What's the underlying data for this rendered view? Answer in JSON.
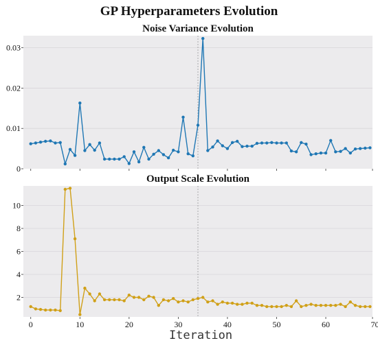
{
  "page_title": "GP Hyperparameters Evolution",
  "x_label": "Iteration",
  "colors": {
    "panel_bg": "#ecebed",
    "noise_line": "#1f77b4",
    "scale_line": "#d0a018",
    "vline": "#999999"
  },
  "vertical_marker_x": 34,
  "chart_data": [
    {
      "type": "line",
      "title": "Noise Variance Evolution",
      "xlabel": "",
      "ylabel": "",
      "ylim": [
        0,
        0.033
      ],
      "yticks": [
        0,
        0.01,
        0.02,
        0.03
      ],
      "ytick_labels": [
        "0",
        "0.01",
        "0.02",
        "0.03"
      ],
      "xlim": [
        -1.5,
        69.5
      ],
      "show_x_tick_labels": false,
      "grid": true,
      "series": [
        {
          "x": [
            0,
            1,
            2,
            3,
            4,
            5,
            6,
            7,
            8,
            9,
            10,
            11,
            12,
            13,
            14,
            15,
            16,
            17,
            18,
            19,
            20,
            21,
            22,
            23,
            24,
            25,
            26,
            27,
            28,
            29,
            30,
            31,
            32,
            33,
            34,
            35,
            36,
            37,
            38,
            39,
            40,
            41,
            42,
            43,
            44,
            45,
            46,
            47,
            48,
            49,
            50,
            51,
            52,
            53,
            54,
            55,
            56,
            57,
            58,
            59,
            60,
            61,
            62,
            63,
            64,
            65,
            66,
            67,
            68,
            69
          ],
          "values": [
            0.0062,
            0.0064,
            0.0066,
            0.0068,
            0.0069,
            0.0064,
            0.0065,
            0.0012,
            0.0048,
            0.0033,
            0.0163,
            0.0045,
            0.006,
            0.0046,
            0.0064,
            0.0024,
            0.0024,
            0.0024,
            0.0024,
            0.003,
            0.0013,
            0.0042,
            0.0017,
            0.0053,
            0.0024,
            0.0036,
            0.0045,
            0.0035,
            0.0027,
            0.0046,
            0.0042,
            0.0128,
            0.0037,
            0.0032,
            0.0108,
            0.0323,
            0.0045,
            0.0054,
            0.0069,
            0.0057,
            0.005,
            0.0065,
            0.0068,
            0.0055,
            0.0056,
            0.0056,
            0.0063,
            0.0064,
            0.0064,
            0.0065,
            0.0064,
            0.0064,
            0.0064,
            0.0044,
            0.0042,
            0.0065,
            0.0061,
            0.0035,
            0.0037,
            0.0039,
            0.0039,
            0.007,
            0.0042,
            0.0043,
            0.005,
            0.0039,
            0.0049,
            0.005,
            0.0051,
            0.0052
          ]
        }
      ]
    },
    {
      "type": "line",
      "title": "Output Scale Evolution",
      "xlabel": "Iteration",
      "ylabel": "",
      "ylim": [
        0.3,
        11.7
      ],
      "yticks": [
        2,
        4,
        6,
        8,
        10
      ],
      "ytick_labels": [
        "2",
        "4",
        "6",
        "8",
        "10"
      ],
      "xlim": [
        -1.5,
        69.5
      ],
      "xticks": [
        0,
        10,
        20,
        30,
        40,
        50,
        60,
        70
      ],
      "xtick_labels": [
        "0",
        "10",
        "20",
        "30",
        "40",
        "50",
        "60",
        "70"
      ],
      "grid": true,
      "series": [
        {
          "x": [
            0,
            1,
            2,
            3,
            4,
            5,
            6,
            7,
            8,
            9,
            10,
            11,
            12,
            13,
            14,
            15,
            16,
            17,
            18,
            19,
            20,
            21,
            22,
            23,
            24,
            25,
            26,
            27,
            28,
            29,
            30,
            31,
            32,
            33,
            34,
            35,
            36,
            37,
            38,
            39,
            40,
            41,
            42,
            43,
            44,
            45,
            46,
            47,
            48,
            49,
            50,
            51,
            52,
            53,
            54,
            55,
            56,
            57,
            58,
            59,
            60,
            61,
            62,
            63,
            64,
            65,
            66,
            67,
            68,
            69
          ],
          "values": [
            1.2,
            1.0,
            0.95,
            0.9,
            0.9,
            0.9,
            0.85,
            11.4,
            11.5,
            7.1,
            0.5,
            2.8,
            2.3,
            1.7,
            2.3,
            1.8,
            1.8,
            1.8,
            1.8,
            1.7,
            2.2,
            2.0,
            2.0,
            1.8,
            2.1,
            2.0,
            1.3,
            1.8,
            1.7,
            1.9,
            1.6,
            1.7,
            1.6,
            1.8,
            1.9,
            2.0,
            1.6,
            1.7,
            1.4,
            1.6,
            1.5,
            1.5,
            1.4,
            1.4,
            1.5,
            1.5,
            1.3,
            1.3,
            1.2,
            1.2,
            1.2,
            1.2,
            1.3,
            1.2,
            1.7,
            1.2,
            1.3,
            1.4,
            1.3,
            1.3,
            1.3,
            1.3,
            1.3,
            1.4,
            1.2,
            1.6,
            1.3,
            1.2,
            1.2,
            1.2
          ]
        }
      ]
    }
  ]
}
